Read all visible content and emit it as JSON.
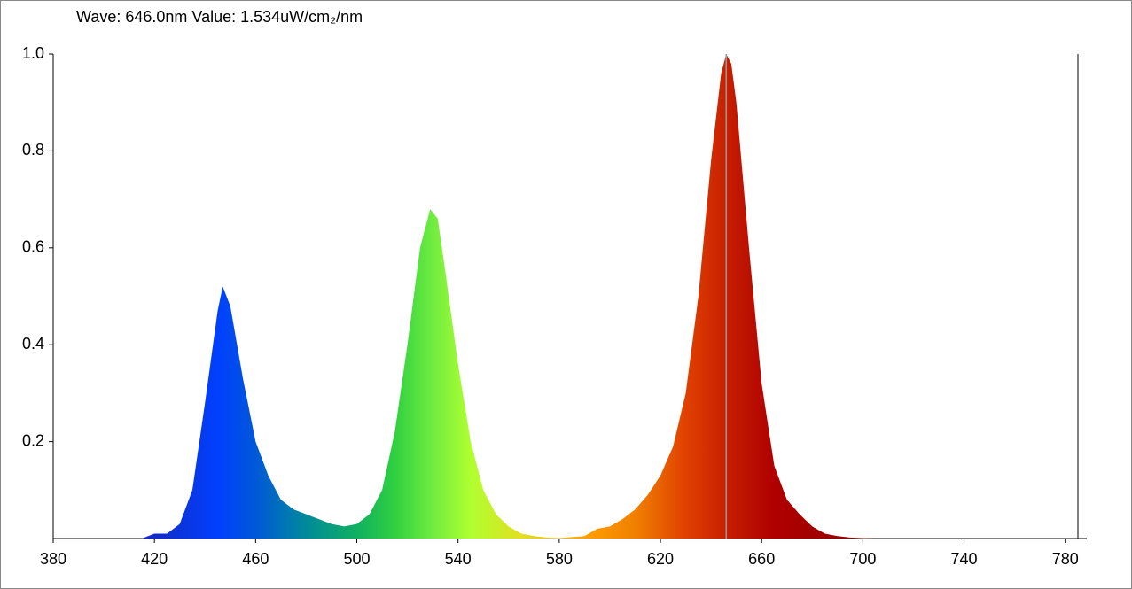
{
  "chart_data": {
    "type": "area",
    "title": "Wave: 646.0nm Value: 1.534uW/cm₂/nm",
    "x": [
      415,
      420,
      425,
      430,
      435,
      440,
      445,
      447,
      450,
      455,
      460,
      465,
      470,
      475,
      480,
      485,
      490,
      495,
      500,
      505,
      510,
      515,
      520,
      525,
      529,
      532,
      535,
      540,
      545,
      550,
      555,
      560,
      565,
      570,
      575,
      580,
      585,
      590,
      595,
      600,
      605,
      610,
      615,
      620,
      625,
      630,
      635,
      640,
      644,
      646,
      648,
      650,
      655,
      660,
      665,
      670,
      675,
      680,
      685,
      690,
      695,
      700,
      705
    ],
    "y": [
      0,
      0.01,
      0.01,
      0.03,
      0.1,
      0.28,
      0.47,
      0.52,
      0.48,
      0.33,
      0.2,
      0.13,
      0.08,
      0.06,
      0.05,
      0.04,
      0.03,
      0.025,
      0.03,
      0.05,
      0.1,
      0.22,
      0.4,
      0.6,
      0.68,
      0.66,
      0.55,
      0.36,
      0.2,
      0.1,
      0.05,
      0.025,
      0.01,
      0.005,
      0.002,
      0.001,
      0.003,
      0.005,
      0.02,
      0.025,
      0.04,
      0.06,
      0.09,
      0.13,
      0.19,
      0.3,
      0.5,
      0.78,
      0.96,
      1.0,
      0.98,
      0.9,
      0.6,
      0.32,
      0.15,
      0.08,
      0.05,
      0.025,
      0.01,
      0.005,
      0.002,
      0.001,
      0
    ],
    "cursor_x": 646,
    "xlim": [
      380,
      785
    ],
    "xticks": [
      380,
      420,
      460,
      500,
      540,
      580,
      620,
      660,
      700,
      740,
      780
    ],
    "ylim": [
      0,
      1
    ],
    "yticks": [
      0.2,
      0.4,
      0.6,
      0.8,
      {
        "value": 1,
        "label": "1.0"
      }
    ]
  }
}
